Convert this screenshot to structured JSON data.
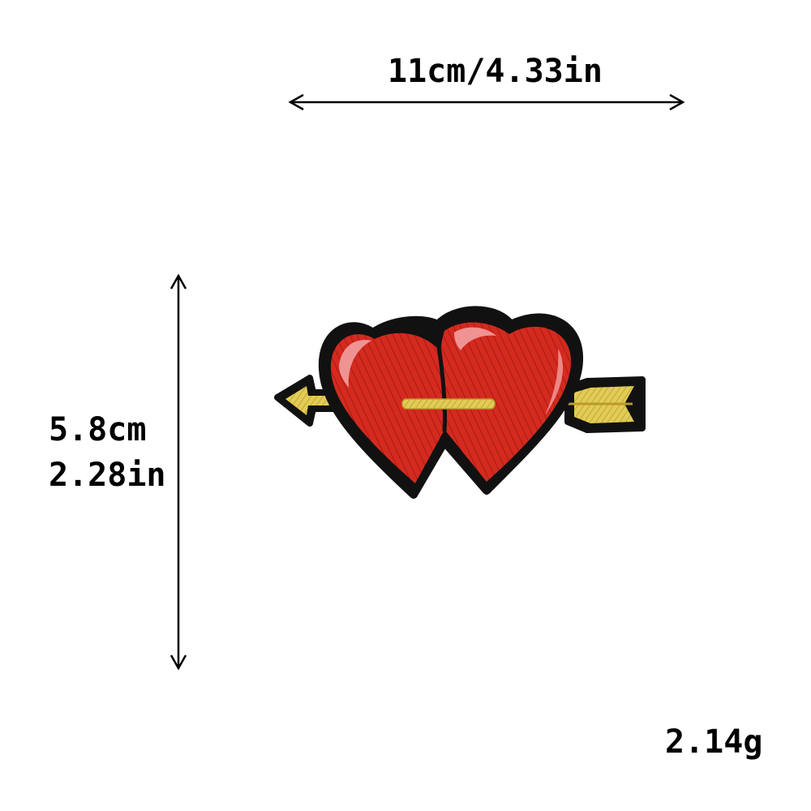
{
  "dimensions": {
    "width_label": "11cm/4.33in",
    "height_cm_label": "5.8cm",
    "height_in_label": "2.28in",
    "weight_label": "2.14g"
  },
  "product": {
    "icon": "double-heart-arrow-patch-icon",
    "colors": {
      "heart_red": "#d42a1f",
      "heart_highlight": "#f2a0a0",
      "outline": "#111111",
      "arrow_gold": "#d9c24a"
    }
  }
}
